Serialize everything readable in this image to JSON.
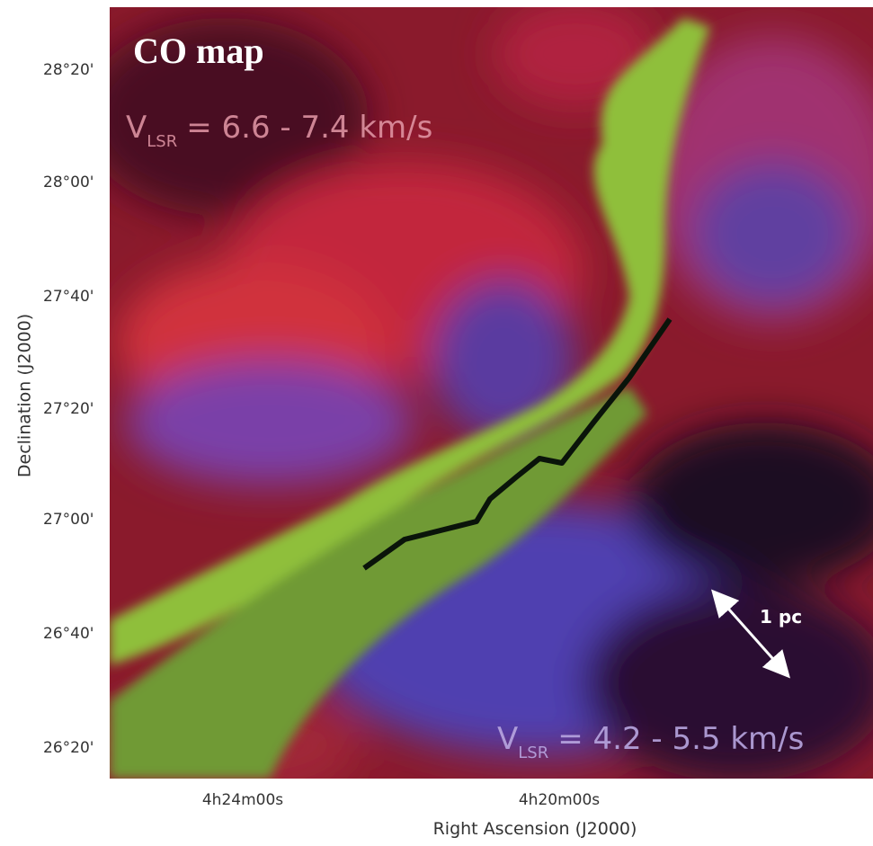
{
  "title": "CO map",
  "axes": {
    "y_title": "Declination (J2000)",
    "x_title": "Right Ascension (J2000)"
  },
  "ticks": {
    "y": [
      "28°20'",
      "28°00'",
      "27°40'",
      "27°20'",
      "27°00'",
      "26°40'",
      "26°20'"
    ],
    "x": [
      "4h24m00s",
      "4h20m00s"
    ]
  },
  "annotations": {
    "upper": {
      "symbol": "V",
      "subscript": "LSR",
      "text": "= 6.6 - 7.4 km/s"
    },
    "lower": {
      "symbol": "V",
      "subscript": "LSR",
      "text": "= 4.2 - 5.5 km/s"
    },
    "scale": "1 pc"
  }
}
